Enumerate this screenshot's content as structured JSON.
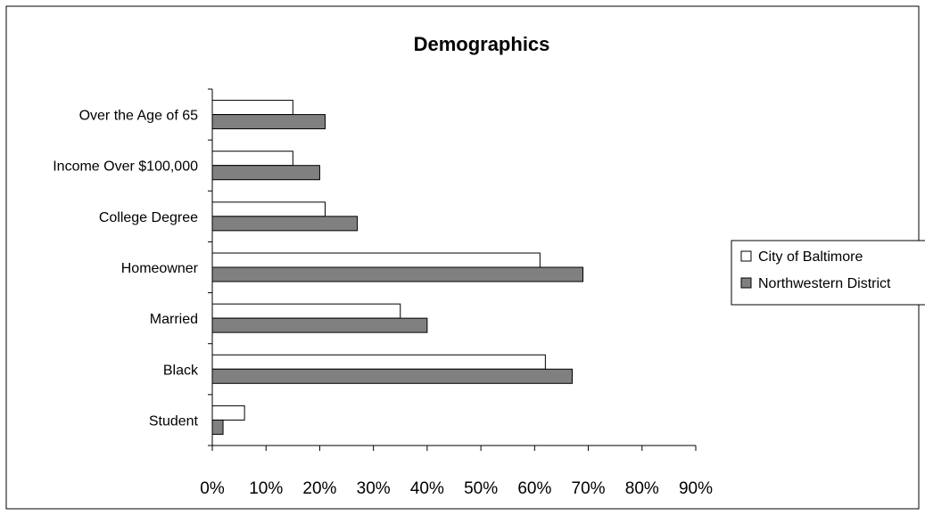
{
  "chart_data": {
    "type": "bar",
    "orientation": "horizontal",
    "title": "Demographics",
    "xlabel": "",
    "ylabel": "",
    "categories": [
      "Over the Age of 65",
      "Income Over $100,000",
      "College Degree",
      "Homeowner",
      "Married",
      "Black",
      "Student"
    ],
    "series": [
      {
        "name": "City of Baltimore",
        "values": [
          15,
          15,
          21,
          61,
          35,
          62,
          6
        ],
        "color": "#ffffff"
      },
      {
        "name": "Northwestern District",
        "values": [
          21,
          20,
          27,
          69,
          40,
          67,
          2
        ],
        "color": "#808080"
      }
    ],
    "xlim": [
      0,
      90
    ],
    "xticks": [
      "0%",
      "10%",
      "20%",
      "30%",
      "40%",
      "50%",
      "60%",
      "70%",
      "80%",
      "90%"
    ],
    "grid": false,
    "legend_position": "right"
  }
}
